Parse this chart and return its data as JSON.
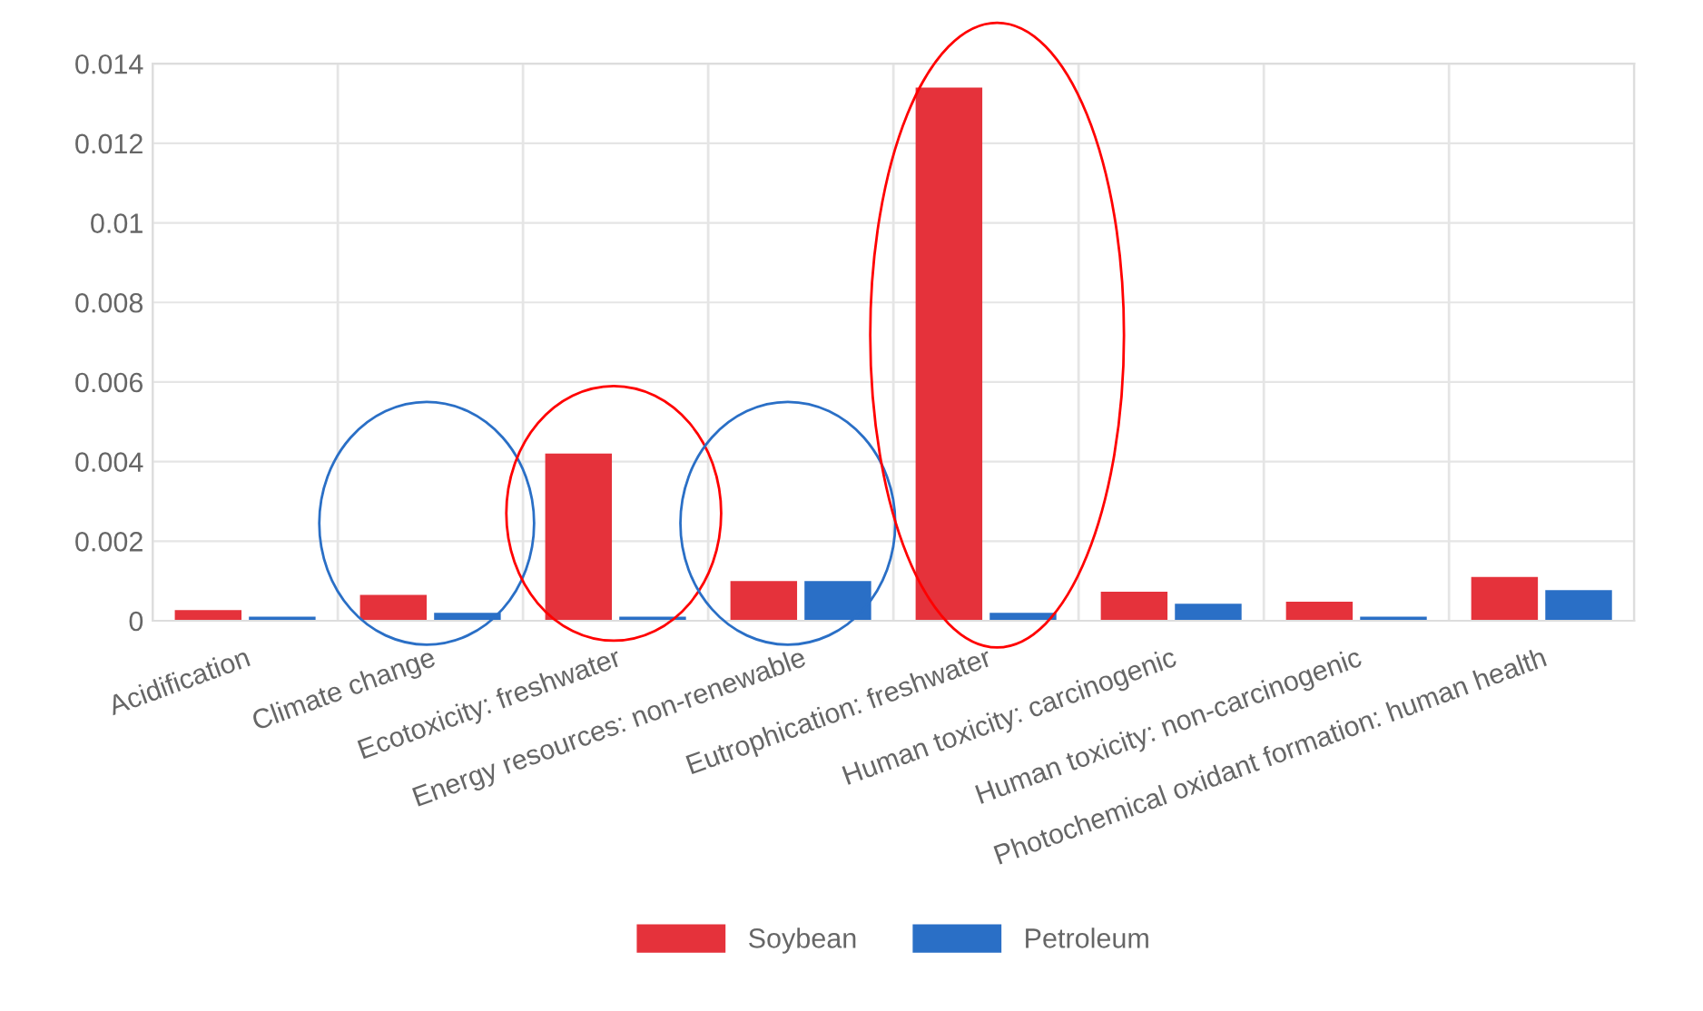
{
  "chart_data": {
    "type": "bar",
    "categories": [
      "Acidification",
      "Climate change",
      "Ecotoxicity: freshwater",
      "Energy resources: non-renewable",
      "Eutrophication: freshwater",
      "Human toxicity: carcinogenic",
      "Human toxicity: non-carcinogenic",
      "Photochemical oxidant formation: human health"
    ],
    "series": [
      {
        "name": "Soybean",
        "color": "#e5323b",
        "values": [
          0.00027,
          0.00065,
          0.0042,
          0.001,
          0.0134,
          0.00073,
          0.00048,
          0.0011
        ]
      },
      {
        "name": "Petroleum",
        "color": "#2a6fc6",
        "values": [
          0.0001,
          0.0002,
          0.0001,
          0.001,
          0.0002,
          0.00043,
          0.0001,
          0.00077
        ]
      }
    ],
    "ylim": [
      0,
      0.014
    ],
    "yticks": [
      0,
      0.002,
      0.004,
      0.006,
      0.008,
      0.01,
      0.012,
      0.014
    ],
    "grid": true,
    "legend": "bottom"
  }
}
